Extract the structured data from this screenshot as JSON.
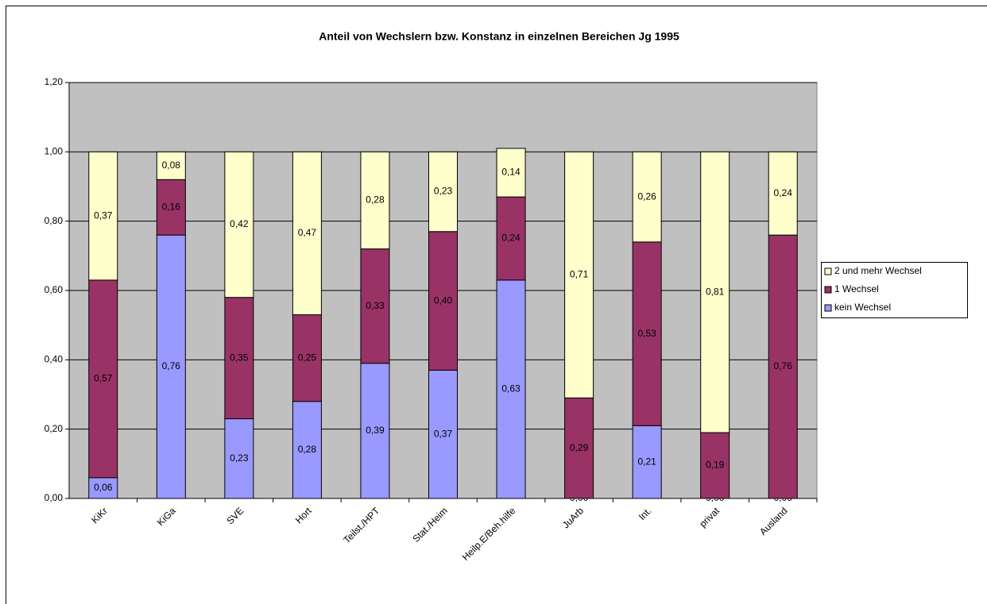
{
  "chart_data": {
    "type": "stacked_bar",
    "title": "Anteil von Wechslern bzw. Konstanz in einzelnen Bereichen Jg 1995",
    "categories": [
      "KiKr",
      "KiGa",
      "SVE",
      "Hort",
      "Teilst./HPT",
      "Stat./Heim",
      "Heilp.E/Beh.hilfe",
      "JuArb",
      "Int.",
      "privat",
      "Ausland"
    ],
    "series": [
      {
        "name": "kein Wechsel",
        "color": "#9999ff",
        "values": [
          0.06,
          0.76,
          0.23,
          0.28,
          0.39,
          0.37,
          0.63,
          0.0,
          0.21,
          0.0,
          0.0
        ],
        "value_labels": [
          "0,06",
          "0,76",
          "0,23",
          "0,28",
          "0,39",
          "0,37",
          "0,63",
          "0,00",
          "0,21",
          "0,00",
          "0,00"
        ]
      },
      {
        "name": "1 Wechsel",
        "color": "#993366",
        "values": [
          0.57,
          0.16,
          0.35,
          0.25,
          0.33,
          0.4,
          0.24,
          0.29,
          0.53,
          0.19,
          0.76
        ],
        "value_labels": [
          "0,57",
          "0,16",
          "0,35",
          "0,25",
          "0,33",
          "0,40",
          "0,24",
          "0,29",
          "0,53",
          "0,19",
          "0,76"
        ]
      },
      {
        "name": "2 und mehr Wechsel",
        "color": "#ffffcc",
        "values": [
          0.37,
          0.08,
          0.42,
          0.47,
          0.28,
          0.23,
          0.14,
          0.71,
          0.26,
          0.81,
          0.24
        ],
        "value_labels": [
          "0,37",
          "0,08",
          "0,42",
          "0,47",
          "0,28",
          "0,23",
          "0,14",
          "0,71",
          "0,26",
          "0,81",
          "0,24"
        ]
      }
    ],
    "ylim": [
      0,
      1.2
    ],
    "yticks": [
      {
        "value": 0,
        "label": "0,00"
      },
      {
        "value": 0.2,
        "label": "0,20"
      },
      {
        "value": 0.4,
        "label": "0,40"
      },
      {
        "value": 0.6,
        "label": "0,60"
      },
      {
        "value": 0.8,
        "label": "0,80"
      },
      {
        "value": 1.0,
        "label": "1,00"
      },
      {
        "value": 1.2,
        "label": "1,20"
      }
    ],
    "grid": true,
    "legend": "right"
  }
}
